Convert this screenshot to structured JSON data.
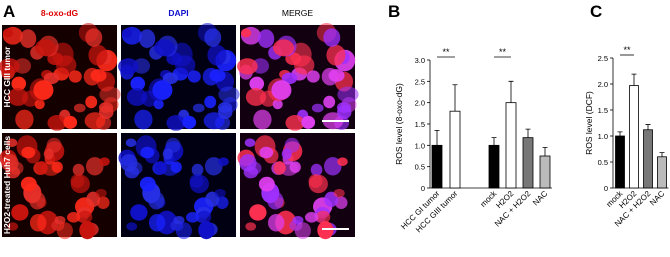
{
  "panel_a": {
    "letter": "A",
    "columns": [
      "8-oxo-dG",
      "DAPI",
      "MERGE"
    ],
    "rows": [
      "HCC GIII tumor",
      "H2O2-treated Huh7 cells"
    ]
  },
  "chart_data": [
    {
      "type": "bar",
      "letter": "B",
      "ylabel": "ROS level (8-oxo-dG)",
      "categories": [
        "HCC GI tumor",
        "HCC GIII tumor",
        "mock",
        "H2O2",
        "NAC + H2O2",
        "NAC"
      ],
      "values": [
        1.0,
        1.8,
        1.0,
        2.0,
        1.18,
        0.75
      ],
      "errors": [
        0.35,
        0.62,
        0.18,
        0.5,
        0.2,
        0.2
      ],
      "colors": [
        "#000000",
        "#ffffff",
        "#000000",
        "#ffffff",
        "#777777",
        "#bbbbbb"
      ],
      "ylim": [
        0,
        3
      ],
      "yticks": [
        0,
        0.5,
        {
          "value": 1,
          "label": "1.0"
        },
        1.5,
        {
          "value": 2,
          "label": "2.0"
        },
        2.5,
        {
          "value": 3,
          "label": "3.0"
        }
      ],
      "annotations": [
        {
          "text": "**",
          "between": [
            "HCC GI tumor",
            "HCC GIII tumor"
          ]
        },
        {
          "text": "**",
          "between": [
            "mock",
            "H2O2"
          ]
        }
      ]
    },
    {
      "type": "bar",
      "letter": "C",
      "ylabel": "ROS level (DCF)",
      "categories": [
        "mock",
        "H2O2",
        "NAC + H2O2",
        "NAC"
      ],
      "values": [
        1.0,
        1.97,
        1.12,
        0.6
      ],
      "errors": [
        0.08,
        0.22,
        0.1,
        0.08
      ],
      "colors": [
        "#000000",
        "#ffffff",
        "#777777",
        "#bbbbbb"
      ],
      "ylim": [
        0,
        2.5
      ],
      "yticks": [
        0,
        0.5,
        {
          "value": 1,
          "label": "1.0"
        },
        1.5,
        {
          "value": 2,
          "label": "2.0"
        },
        2.5
      ],
      "annotations": [
        {
          "text": "**",
          "between": [
            "mock",
            "H2O2"
          ]
        }
      ]
    }
  ]
}
